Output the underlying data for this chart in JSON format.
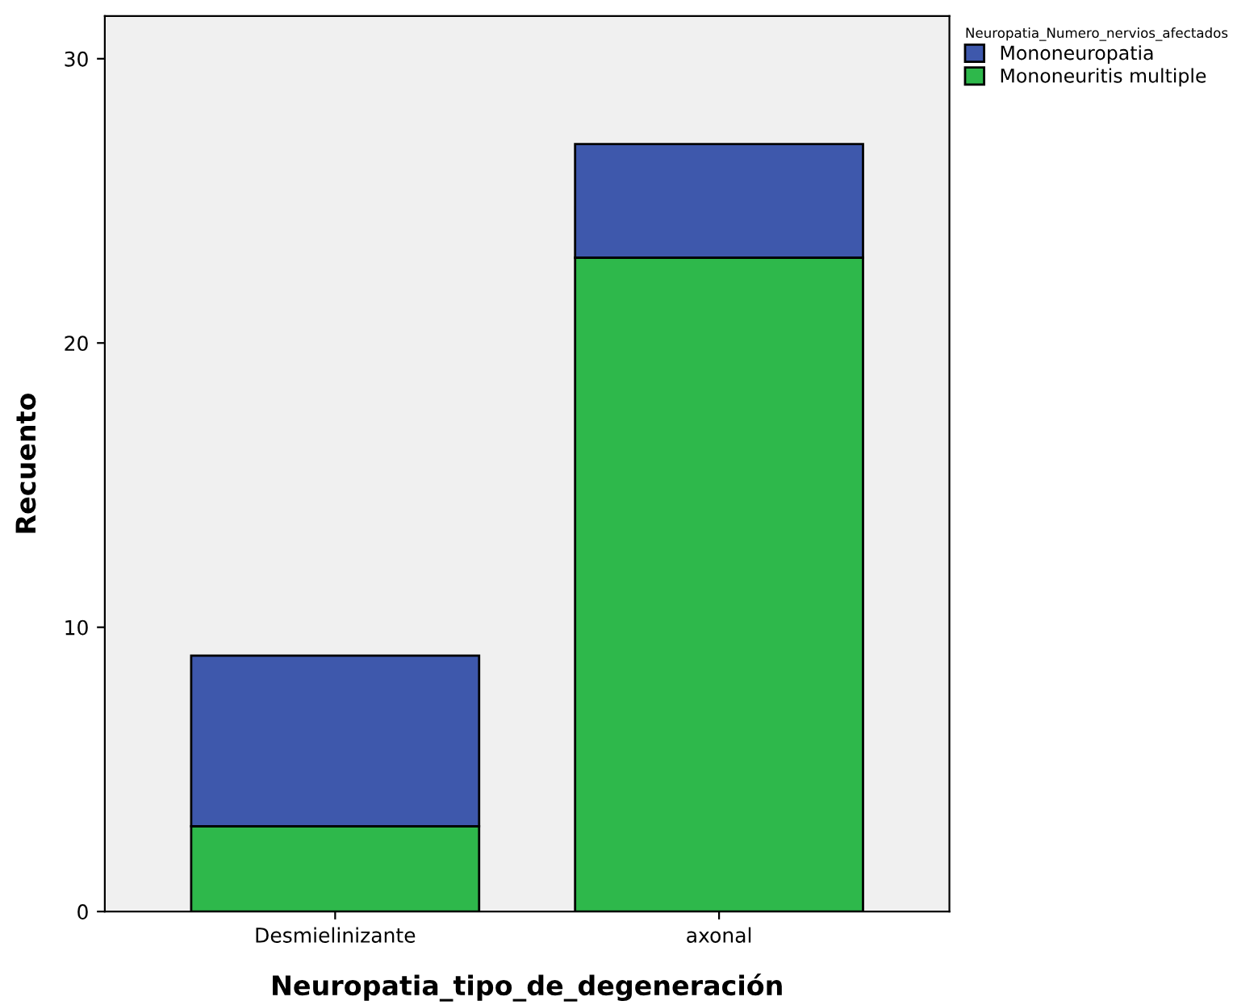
{
  "chart_data": {
    "type": "bar",
    "stacked": true,
    "xlabel": "Neuropatia_tipo_de_degeneración",
    "ylabel": "Recuento",
    "legend_title": "Neuropatia_Numero_nervios_afectados",
    "categories": [
      "Desmielinizante",
      "axonal"
    ],
    "series": [
      {
        "name": "Mononeuritis multiple",
        "color": "#2eb84b",
        "values": [
          3,
          23
        ]
      },
      {
        "name": "Mononeuropatia",
        "color": "#3e58ac",
        "values": [
          6,
          4
        ]
      }
    ],
    "ylim": [
      0,
      31.5
    ],
    "yticks": [
      0,
      10,
      20,
      30
    ],
    "grid": false,
    "legend": "top right"
  }
}
